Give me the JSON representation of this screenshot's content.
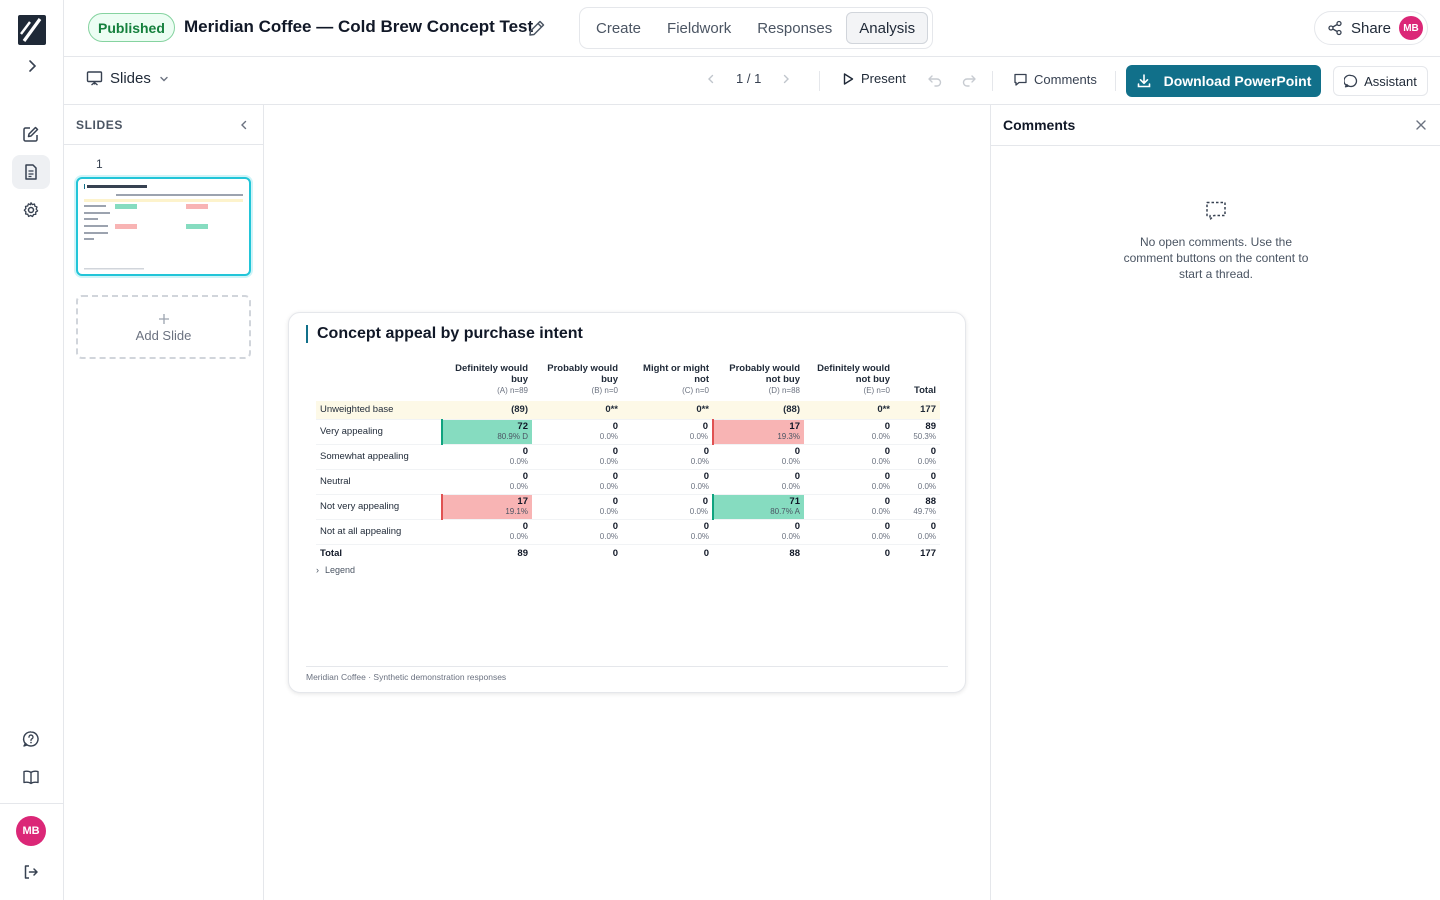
{
  "header": {
    "status_badge": "Published",
    "title": "Meridian Coffee — Cold Brew Concept Test",
    "tabs": [
      {
        "label": "Create",
        "active": false
      },
      {
        "label": "Fieldwork",
        "active": false
      },
      {
        "label": "Responses",
        "active": false
      },
      {
        "label": "Analysis",
        "active": true
      }
    ],
    "share_label": "Share",
    "user_initials": "MB"
  },
  "rail": {
    "icons": [
      "app-logo-icon",
      "expand-chevron-icon",
      "edit-icon",
      "document-icon",
      "settings-icon",
      "help-icon",
      "book-icon",
      "logout-icon"
    ],
    "user_initials": "MB"
  },
  "toolbar": {
    "view_label": "Slides",
    "page_indicator": "1 / 1",
    "present_label": "Present",
    "comments_label": "Comments",
    "download_label": "Download PowerPoint",
    "assistant_label": "Assistant"
  },
  "slides_panel": {
    "heading": "SLIDES",
    "slide_number": "1",
    "add_slide_label": "Add Slide"
  },
  "slide": {
    "title": "Concept appeal by purchase intent",
    "columns": [
      {
        "label": "Definitely would buy",
        "sub": "(A) n=89"
      },
      {
        "label": "Probably would buy",
        "sub": "(B) n=0"
      },
      {
        "label": "Might or might not",
        "sub": "(C) n=0"
      },
      {
        "label": "Probably would not buy",
        "sub": "(D) n=88"
      },
      {
        "label": "Definitely would not buy",
        "sub": "(E) n=0"
      },
      {
        "label": "Total",
        "sub": ""
      }
    ],
    "base_row": {
      "label": "Unweighted base",
      "values": [
        "(89)",
        "0**",
        "0**",
        "(88)",
        "0**",
        "177"
      ]
    },
    "rows": [
      {
        "label": "Very appealing",
        "cells": [
          {
            "count": "72",
            "pct": "80.9% D",
            "hl": "green"
          },
          {
            "count": "0",
            "pct": "0.0%",
            "hl": ""
          },
          {
            "count": "0",
            "pct": "0.0%",
            "hl": ""
          },
          {
            "count": "17",
            "pct": "19.3%",
            "hl": "red"
          },
          {
            "count": "0",
            "pct": "0.0%",
            "hl": ""
          },
          {
            "count": "89",
            "pct": "50.3%",
            "hl": ""
          }
        ]
      },
      {
        "label": "Somewhat appealing",
        "cells": [
          {
            "count": "0",
            "pct": "0.0%",
            "hl": ""
          },
          {
            "count": "0",
            "pct": "0.0%",
            "hl": ""
          },
          {
            "count": "0",
            "pct": "0.0%",
            "hl": ""
          },
          {
            "count": "0",
            "pct": "0.0%",
            "hl": ""
          },
          {
            "count": "0",
            "pct": "0.0%",
            "hl": ""
          },
          {
            "count": "0",
            "pct": "0.0%",
            "hl": ""
          }
        ]
      },
      {
        "label": "Neutral",
        "cells": [
          {
            "count": "0",
            "pct": "0.0%",
            "hl": ""
          },
          {
            "count": "0",
            "pct": "0.0%",
            "hl": ""
          },
          {
            "count": "0",
            "pct": "0.0%",
            "hl": ""
          },
          {
            "count": "0",
            "pct": "0.0%",
            "hl": ""
          },
          {
            "count": "0",
            "pct": "0.0%",
            "hl": ""
          },
          {
            "count": "0",
            "pct": "0.0%",
            "hl": ""
          }
        ]
      },
      {
        "label": "Not very appealing",
        "cells": [
          {
            "count": "17",
            "pct": "19.1%",
            "hl": "red"
          },
          {
            "count": "0",
            "pct": "0.0%",
            "hl": ""
          },
          {
            "count": "0",
            "pct": "0.0%",
            "hl": ""
          },
          {
            "count": "71",
            "pct": "80.7% A",
            "hl": "green"
          },
          {
            "count": "0",
            "pct": "0.0%",
            "hl": ""
          },
          {
            "count": "88",
            "pct": "49.7%",
            "hl": ""
          }
        ]
      },
      {
        "label": "Not at all appealing",
        "cells": [
          {
            "count": "0",
            "pct": "0.0%",
            "hl": ""
          },
          {
            "count": "0",
            "pct": "0.0%",
            "hl": ""
          },
          {
            "count": "0",
            "pct": "0.0%",
            "hl": ""
          },
          {
            "count": "0",
            "pct": "0.0%",
            "hl": ""
          },
          {
            "count": "0",
            "pct": "0.0%",
            "hl": ""
          },
          {
            "count": "0",
            "pct": "0.0%",
            "hl": ""
          }
        ]
      }
    ],
    "total_row": {
      "label": "Total",
      "values": [
        "89",
        "0",
        "0",
        "88",
        "0",
        "177"
      ]
    },
    "legend_label": "Legend",
    "footer": "Meridian Coffee · Synthetic demonstration responses"
  },
  "comments_panel": {
    "heading": "Comments",
    "empty_text": "No open comments. Use the comment buttons on the content to start a thread."
  },
  "colors": {
    "accent": "#11708a",
    "published_green": "#15803d",
    "highlight_green": "#86dcc0",
    "highlight_red": "#f8b4b4",
    "avatar": "#db2777"
  }
}
